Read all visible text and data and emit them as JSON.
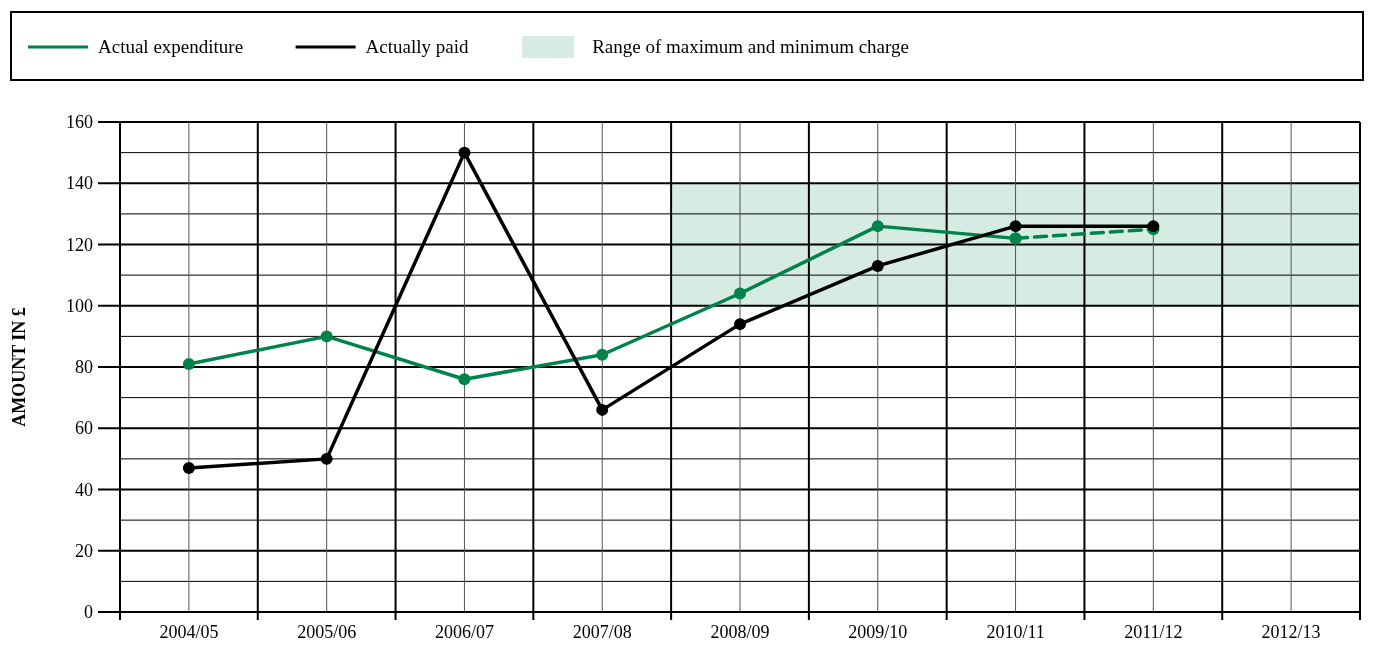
{
  "chart_data": {
    "type": "line",
    "ylabel": "AMOUNT IN £",
    "categories": [
      "2004/05",
      "2005/06",
      "2006/07",
      "2007/08",
      "2008/09",
      "2009/10",
      "2010/11",
      "2011/12",
      "2012/13"
    ],
    "series": [
      {
        "name": "Actual expenditure",
        "color": "#00834a",
        "values": [
          81,
          90,
          76,
          84,
          104,
          126,
          122,
          null,
          null
        ]
      },
      {
        "color": "#00834a",
        "line_style": "dashed",
        "values": [
          null,
          null,
          null,
          null,
          null,
          null,
          122,
          125,
          null
        ]
      },
      {
        "name": "Actually paid",
        "color": "#000000",
        "values": [
          47,
          50,
          150,
          66,
          94,
          113,
          126,
          126,
          null
        ]
      }
    ],
    "bands": [
      {
        "axis": "y",
        "from": 100,
        "to": 140,
        "label": "Range of maximum and minimum charge",
        "color": "#d6ebe2"
      }
    ],
    "ylim": [
      0,
      160
    ],
    "yticks": [
      0,
      20,
      40,
      60,
      80,
      100,
      120,
      140,
      160
    ],
    "grid": true,
    "legend": "top",
    "marker": "circle",
    "line_style": "solid"
  }
}
